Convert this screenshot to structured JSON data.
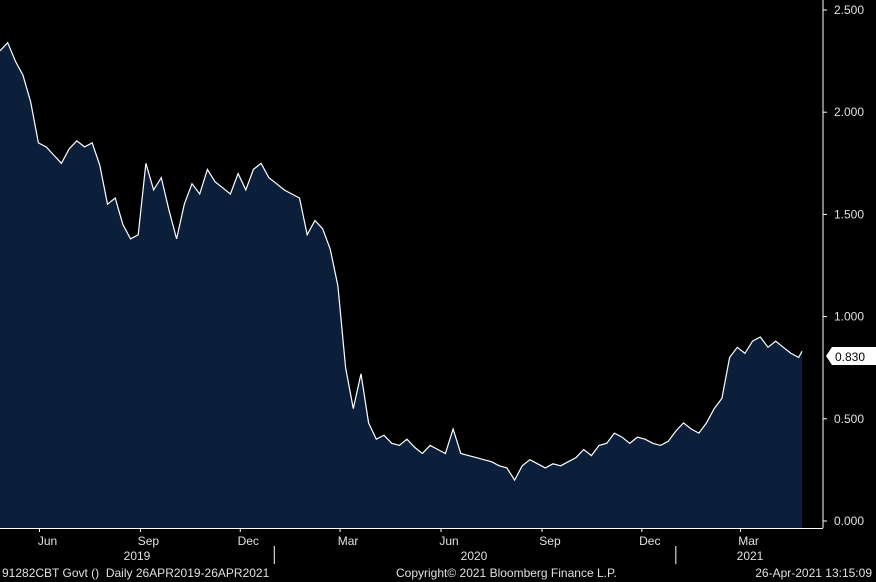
{
  "footer": {
    "security": "91282CBT Govt ()",
    "range": "Daily 26APR2019-26APR2021",
    "copyright": "Copyright© 2021 Bloomberg Finance L.P.",
    "timestamp": "26-Apr-2021 13:15:09"
  },
  "colors": {
    "background": "#000000",
    "area_fill": "#0b1f3a",
    "line": "#ffffff",
    "text": "#e0e0e0"
  },
  "chart_data": {
    "type": "area",
    "title": "",
    "xlabel": "",
    "ylabel": "",
    "ylim": [
      0,
      2.5
    ],
    "y_ticks": [
      "0.000",
      "0.500",
      "1.000",
      "1.500",
      "2.000",
      "2.500"
    ],
    "x_ticks": [
      "Jun",
      "Sep",
      "Dec",
      "Mar",
      "Jun",
      "Sep",
      "Dec",
      "Mar"
    ],
    "years": [
      "2019",
      "2020",
      "2021"
    ],
    "last_value_label": "0.830",
    "grid": false,
    "series": [
      {
        "x": [
          "2019-04-26",
          "2019-05-03",
          "2019-05-10",
          "2019-05-17",
          "2019-05-24",
          "2019-05-31",
          "2019-06-07",
          "2019-06-14",
          "2019-06-21",
          "2019-06-28",
          "2019-07-05",
          "2019-07-12",
          "2019-07-19",
          "2019-07-26",
          "2019-08-02",
          "2019-08-09",
          "2019-08-16",
          "2019-08-23",
          "2019-08-30",
          "2019-09-06",
          "2019-09-13",
          "2019-09-20",
          "2019-09-27",
          "2019-10-04",
          "2019-10-11",
          "2019-10-18",
          "2019-10-25",
          "2019-11-01",
          "2019-11-08",
          "2019-11-15",
          "2019-11-22",
          "2019-11-29",
          "2019-12-06",
          "2019-12-13",
          "2019-12-20",
          "2019-12-27",
          "2020-01-03",
          "2020-01-10",
          "2020-01-17",
          "2020-01-24",
          "2020-01-31",
          "2020-02-07",
          "2020-02-14",
          "2020-02-21",
          "2020-02-28",
          "2020-03-06",
          "2020-03-13",
          "2020-03-20",
          "2020-03-27",
          "2020-04-03",
          "2020-04-10",
          "2020-04-17",
          "2020-04-24",
          "2020-05-01",
          "2020-05-08",
          "2020-05-15",
          "2020-05-22",
          "2020-05-29",
          "2020-06-05",
          "2020-06-12",
          "2020-06-19",
          "2020-06-26",
          "2020-07-03",
          "2020-07-10",
          "2020-07-17",
          "2020-07-24",
          "2020-07-31",
          "2020-08-07",
          "2020-08-14",
          "2020-08-21",
          "2020-08-28",
          "2020-09-04",
          "2020-09-11",
          "2020-09-18",
          "2020-09-25",
          "2020-10-02",
          "2020-10-09",
          "2020-10-16",
          "2020-10-23",
          "2020-10-30",
          "2020-11-06",
          "2020-11-13",
          "2020-11-20",
          "2020-11-27",
          "2020-12-04",
          "2020-12-11",
          "2020-12-18",
          "2020-12-25",
          "2021-01-01",
          "2021-01-08",
          "2021-01-15",
          "2021-01-22",
          "2021-01-29",
          "2021-02-05",
          "2021-02-12",
          "2021-02-19",
          "2021-02-26",
          "2021-03-05",
          "2021-03-12",
          "2021-03-19",
          "2021-03-26",
          "2021-04-02",
          "2021-04-09",
          "2021-04-16",
          "2021-04-23",
          "2021-04-26"
        ],
        "values": [
          2.3,
          2.34,
          2.25,
          2.18,
          2.05,
          1.85,
          1.83,
          1.79,
          1.75,
          1.82,
          1.86,
          1.83,
          1.85,
          1.74,
          1.55,
          1.58,
          1.45,
          1.38,
          1.4,
          1.75,
          1.62,
          1.68,
          1.52,
          1.38,
          1.55,
          1.65,
          1.6,
          1.72,
          1.66,
          1.63,
          1.6,
          1.7,
          1.62,
          1.72,
          1.75,
          1.68,
          1.65,
          1.62,
          1.6,
          1.58,
          1.4,
          1.47,
          1.43,
          1.33,
          1.15,
          0.75,
          0.55,
          0.72,
          0.48,
          0.4,
          0.42,
          0.38,
          0.37,
          0.4,
          0.36,
          0.33,
          0.37,
          0.35,
          0.33,
          0.45,
          0.33,
          0.32,
          0.31,
          0.3,
          0.29,
          0.27,
          0.26,
          0.2,
          0.27,
          0.3,
          0.28,
          0.26,
          0.28,
          0.27,
          0.29,
          0.31,
          0.35,
          0.32,
          0.37,
          0.38,
          0.43,
          0.41,
          0.38,
          0.41,
          0.4,
          0.38,
          0.37,
          0.39,
          0.44,
          0.48,
          0.45,
          0.43,
          0.48,
          0.55,
          0.6,
          0.8,
          0.85,
          0.82,
          0.88,
          0.9,
          0.85,
          0.88,
          0.85,
          0.82,
          0.8,
          0.83
        ]
      }
    ]
  }
}
